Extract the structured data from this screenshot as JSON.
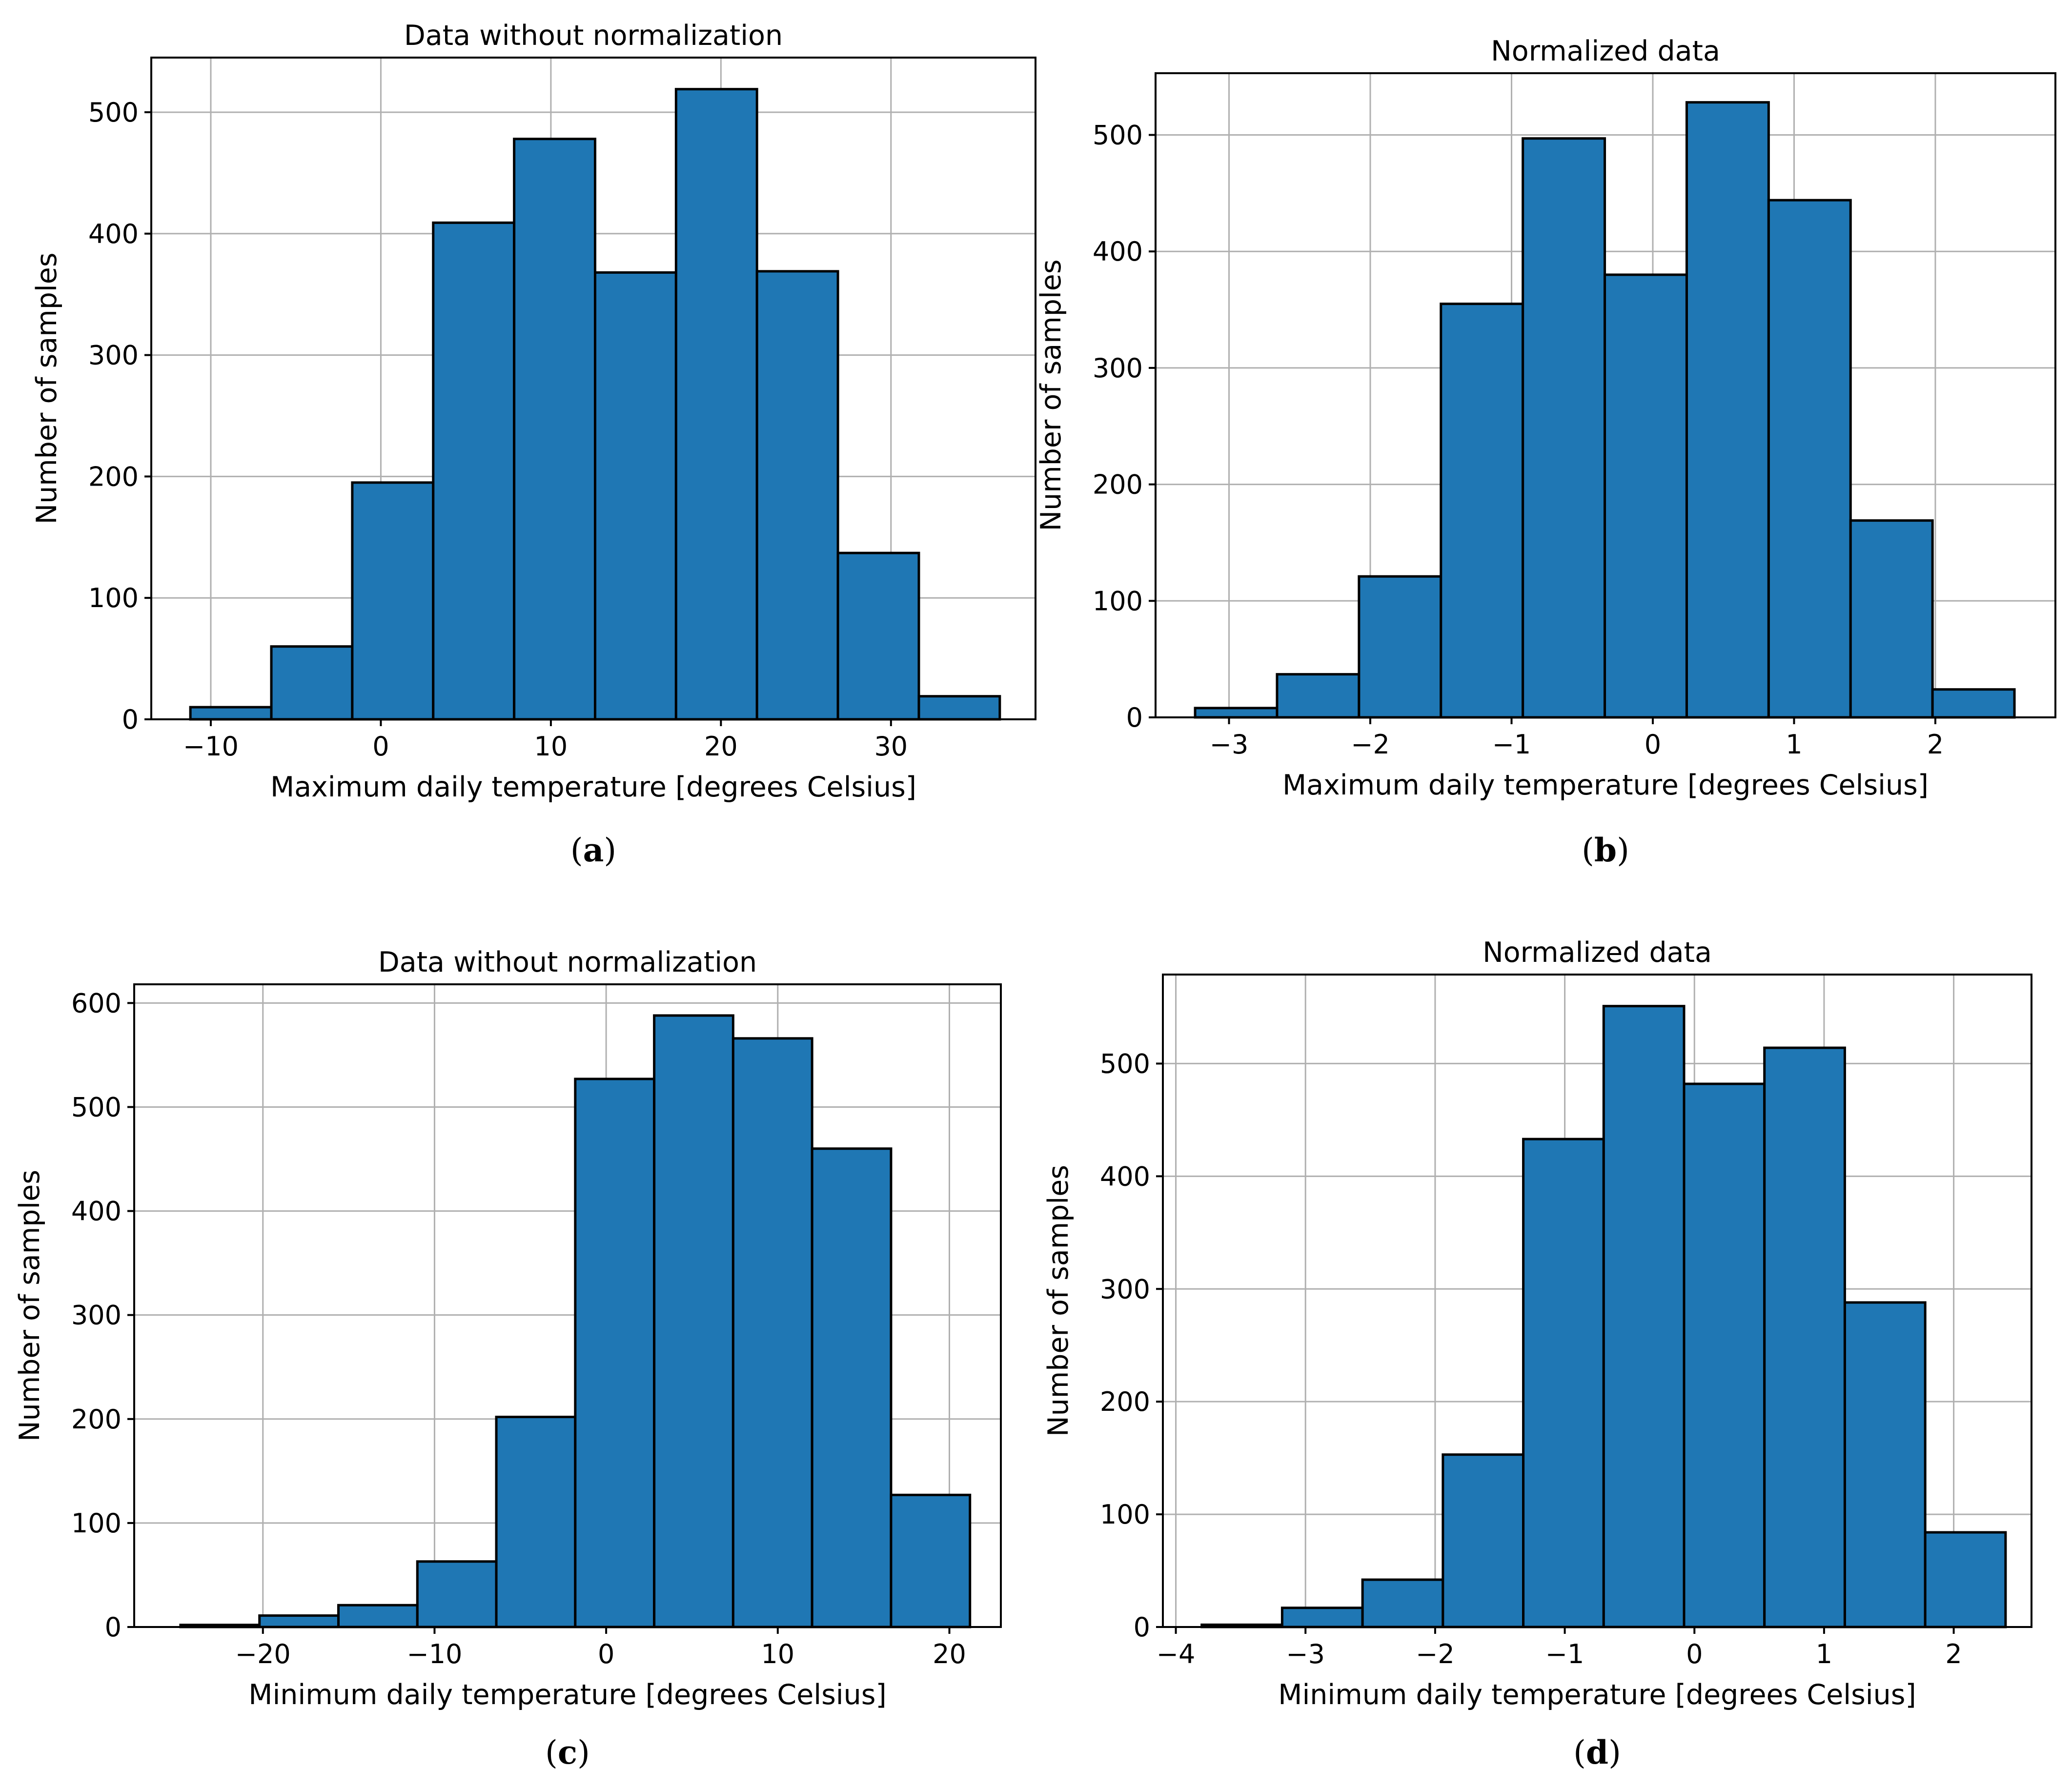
{
  "chart_data": [
    {
      "type": "bar",
      "title": "Data without normalization",
      "xlabel": "Maximum daily temperature [degrees Celsius]",
      "ylabel": "Number of samples",
      "caption_letter": "a",
      "xlim": [
        -13.5,
        38.5
      ],
      "ylim": [
        0,
        545
      ],
      "xticks": [
        -10,
        0,
        10,
        20,
        30
      ],
      "xtick_labels": [
        "−10",
        "0",
        "10",
        "20",
        "30"
      ],
      "yticks": [
        0,
        100,
        200,
        300,
        400,
        500
      ],
      "ytick_labels": [
        "0",
        "100",
        "200",
        "300",
        "400",
        "500"
      ],
      "grid": true,
      "bin_edges": [
        -11.2,
        -6.44,
        -1.68,
        3.08,
        7.84,
        12.6,
        17.36,
        22.12,
        26.88,
        31.64,
        36.4
      ],
      "values": [
        10,
        60,
        195,
        409,
        478,
        368,
        519,
        369,
        137,
        19
      ]
    },
    {
      "type": "bar",
      "title": "Normalized data",
      "xlabel": "Maximum daily temperature [degrees Celsius]",
      "ylabel": "Number of samples",
      "caption_letter": "b",
      "xlim": [
        -3.52,
        2.85
      ],
      "ylim": [
        0,
        553
      ],
      "xticks": [
        -3,
        -2,
        -1,
        0,
        1,
        2
      ],
      "xtick_labels": [
        "−3",
        "−2",
        "−1",
        "0",
        "1",
        "2"
      ],
      "yticks": [
        0,
        100,
        200,
        300,
        400,
        500
      ],
      "ytick_labels": [
        "0",
        "100",
        "200",
        "300",
        "400",
        "500"
      ],
      "grid": true,
      "bin_edges": [
        -3.24,
        -2.66,
        -2.08,
        -1.5,
        -0.92,
        -0.34,
        0.24,
        0.82,
        1.4,
        1.98,
        2.56
      ],
      "values": [
        8,
        37,
        121,
        355,
        497,
        380,
        528,
        444,
        169,
        24
      ]
    },
    {
      "type": "bar",
      "title": "Data without normalization",
      "xlabel": "Minimum daily temperature [degrees Celsius]",
      "ylabel": "Number of samples",
      "caption_letter": "c",
      "xlim": [
        -27.5,
        23.0
      ],
      "ylim": [
        0,
        618
      ],
      "xticks": [
        -20,
        -10,
        0,
        10,
        20
      ],
      "xtick_labels": [
        "−20",
        "−10",
        "0",
        "10",
        "20"
      ],
      "yticks": [
        0,
        100,
        200,
        300,
        400,
        500,
        600
      ],
      "ytick_labels": [
        "0",
        "100",
        "200",
        "300",
        "400",
        "500",
        "600"
      ],
      "grid": true,
      "bin_edges": [
        -24.8,
        -20.2,
        -15.6,
        -11.0,
        -6.4,
        -1.8,
        2.8,
        7.4,
        12.0,
        16.6,
        21.2
      ],
      "values": [
        2,
        11,
        21,
        63,
        202,
        527,
        588,
        566,
        460,
        127
      ]
    },
    {
      "type": "bar",
      "title": "Normalized data",
      "xlabel": "Minimum daily temperature [degrees Celsius]",
      "ylabel": "Number of samples",
      "caption_letter": "d",
      "xlim": [
        -4.1,
        2.6
      ],
      "ylim": [
        0,
        579
      ],
      "xticks": [
        -4,
        -3,
        -2,
        -1,
        0,
        1,
        2
      ],
      "xtick_labels": [
        "−4",
        "−3",
        "−2",
        "−1",
        "0",
        "1",
        "2"
      ],
      "yticks": [
        0,
        100,
        200,
        300,
        400,
        500
      ],
      "ytick_labels": [
        "0",
        "100",
        "200",
        "300",
        "400",
        "500"
      ],
      "grid": true,
      "bin_edges": [
        -3.8,
        -3.18,
        -2.56,
        -1.94,
        -1.32,
        -0.7,
        -0.08,
        0.54,
        1.16,
        1.78,
        2.4
      ],
      "values": [
        2,
        17,
        42,
        153,
        433,
        551,
        482,
        514,
        288,
        84
      ]
    }
  ]
}
